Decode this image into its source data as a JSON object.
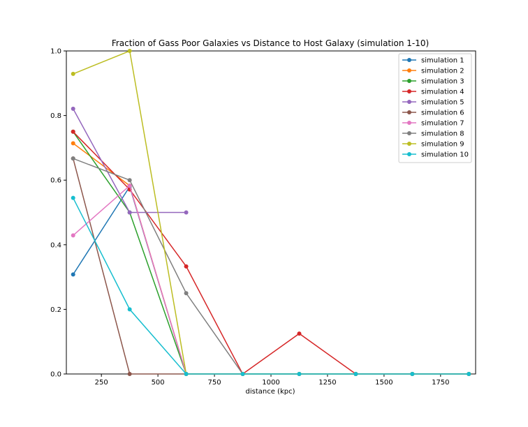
{
  "chart_data": {
    "type": "line",
    "title": "Fraction of Gass Poor Galaxies vs Distance to Host Galaxy (simulation 1-10)",
    "xlabel": "distance (kpc)",
    "ylabel": "",
    "xlim": [
      95,
      1905
    ],
    "ylim": [
      0,
      1.0
    ],
    "xticks": [
      250,
      500,
      750,
      1000,
      1250,
      1500,
      1750
    ],
    "yticks": [
      0.0,
      0.2,
      0.4,
      0.6,
      0.8,
      1.0
    ],
    "xtick_labels": [
      "250",
      "500",
      "750",
      "1000",
      "1250",
      "1500",
      "1750"
    ],
    "ytick_labels": [
      "0.0",
      "0.2",
      "0.4",
      "0.6",
      "0.8",
      "1.0"
    ],
    "grid": false,
    "legend_position": "top-right",
    "series": [
      {
        "name": "simulation 1",
        "color": "#1f77b4",
        "x": [
          125,
          375,
          625,
          875,
          1125,
          1375,
          1625,
          1875
        ],
        "y": [
          0.308,
          0.58,
          0.0,
          0.0,
          0.0,
          0.0,
          0.0,
          0.0
        ]
      },
      {
        "name": "simulation 2",
        "color": "#ff7f0e",
        "x": [
          125,
          375,
          625,
          875,
          1125,
          1375,
          1625,
          1875
        ],
        "y": [
          0.714,
          0.583,
          0.0,
          0.0,
          0.0,
          0.0,
          0.0,
          0.0
        ]
      },
      {
        "name": "simulation 3",
        "color": "#2ca02c",
        "x": [
          125,
          375,
          625,
          875,
          1125,
          1375,
          1625,
          1875
        ],
        "y": [
          0.75,
          0.5,
          0.0,
          0.0,
          0.0,
          0.0,
          0.0,
          0.0
        ]
      },
      {
        "name": "simulation 4",
        "color": "#d62728",
        "x": [
          125,
          375,
          625,
          875,
          1125,
          1375,
          1625,
          1875
        ],
        "y": [
          0.75,
          0.571,
          0.333,
          0.0,
          0.125,
          0.0,
          0.0,
          0.0
        ]
      },
      {
        "name": "simulation 5",
        "color": "#9467bd",
        "x": [
          125,
          375,
          625
        ],
        "y": [
          0.821,
          0.5,
          0.5
        ]
      },
      {
        "name": "simulation 6",
        "color": "#8c564b",
        "x": [
          125,
          375,
          625,
          875
        ],
        "y": [
          0.667,
          0.0,
          0.0,
          0.0
        ]
      },
      {
        "name": "simulation 7",
        "color": "#e377c2",
        "x": [
          125,
          375,
          625,
          875,
          1125,
          1375,
          1625,
          1875
        ],
        "y": [
          0.429,
          0.583,
          0.0,
          0.0,
          0.0,
          0.0,
          0.0,
          0.0
        ]
      },
      {
        "name": "simulation 8",
        "color": "#7f7f7f",
        "x": [
          125,
          375,
          625,
          875,
          1125,
          1375,
          1625,
          1875
        ],
        "y": [
          0.667,
          0.6,
          0.25,
          0.0,
          0.0,
          0.0,
          0.0,
          0.0
        ]
      },
      {
        "name": "simulation 9",
        "color": "#bcbd22",
        "x": [
          125,
          375,
          625,
          875,
          1125,
          1375,
          1625,
          1875
        ],
        "y": [
          0.929,
          1.0,
          0.0,
          0.0,
          0.0,
          0.0,
          0.0,
          0.0
        ]
      },
      {
        "name": "simulation 10",
        "color": "#17becf",
        "x": [
          125,
          375,
          625,
          875,
          1125,
          1375,
          1625,
          1875
        ],
        "y": [
          0.545,
          0.2,
          0.0,
          0.0,
          0.0,
          0.0,
          0.0,
          0.0
        ]
      }
    ]
  }
}
